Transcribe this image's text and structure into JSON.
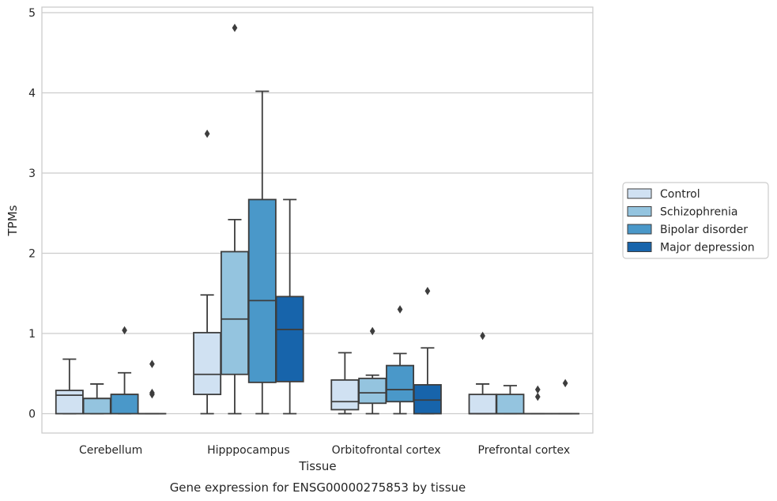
{
  "chart_data": {
    "type": "boxplot",
    "xlabel": "Tissue",
    "ylabel": "TPMs",
    "caption": "Gene expression for ENSG00000275853 by tissue",
    "ylim": [
      -0.23,
      5.08
    ],
    "yticks": [
      0,
      1,
      2,
      3,
      4,
      5
    ],
    "grid": "horizontal",
    "legend_position": "right",
    "categories": [
      "Cerebellum",
      "Hipppocampus",
      "Orbitofrontal cortex",
      "Prefrontal cortex"
    ],
    "series": [
      {
        "name": "Control",
        "color": "#d0e1f2",
        "boxes": [
          {
            "whislo": 0,
            "q1": 0,
            "med": 0.23,
            "q3": 0.29,
            "whishi": 0.68,
            "fliers": []
          },
          {
            "whislo": 0,
            "q1": 0.24,
            "med": 0.49,
            "q3": 1.01,
            "whishi": 1.48,
            "fliers": [
              3.49
            ]
          },
          {
            "whislo": 0,
            "q1": 0.05,
            "med": 0.15,
            "q3": 0.42,
            "whishi": 0.76,
            "fliers": []
          },
          {
            "whislo": 0,
            "q1": 0,
            "med": 0,
            "q3": 0.24,
            "whishi": 0.37,
            "fliers": [
              0.97
            ]
          }
        ]
      },
      {
        "name": "Schizophrenia",
        "color": "#94c4df",
        "boxes": [
          {
            "whislo": 0,
            "q1": 0,
            "med": 0.19,
            "q3": 0.19,
            "whishi": 0.37,
            "fliers": []
          },
          {
            "whislo": 0,
            "q1": 0.49,
            "med": 1.18,
            "q3": 2.02,
            "whishi": 2.42,
            "fliers": [
              4.81
            ]
          },
          {
            "whislo": 0,
            "q1": 0.13,
            "med": 0.26,
            "q3": 0.44,
            "whishi": 0.48,
            "fliers": [
              1.03
            ]
          },
          {
            "whislo": 0,
            "q1": 0,
            "med": 0,
            "q3": 0.24,
            "whishi": 0.35,
            "fliers": []
          }
        ]
      },
      {
        "name": "Bipolar disorder",
        "color": "#4a98c9",
        "boxes": [
          {
            "whislo": 0,
            "q1": 0,
            "med": 0.24,
            "q3": 0.24,
            "whishi": 0.51,
            "fliers": [
              1.04
            ]
          },
          {
            "whislo": 0,
            "q1": 0.39,
            "med": 1.41,
            "q3": 2.67,
            "whishi": 4.02,
            "fliers": []
          },
          {
            "whislo": 0,
            "q1": 0.15,
            "med": 0.3,
            "q3": 0.6,
            "whishi": 0.75,
            "fliers": [
              1.3
            ]
          },
          {
            "whislo": 0,
            "q1": 0,
            "med": 0,
            "q3": 0,
            "whishi": 0,
            "fliers": [
              0.21,
              0.3
            ]
          }
        ]
      },
      {
        "name": "Major depression",
        "color": "#1764ab",
        "boxes": [
          {
            "whislo": 0,
            "q1": 0,
            "med": 0,
            "q3": 0,
            "whishi": 0,
            "fliers": [
              0.24,
              0.26,
              0.62
            ]
          },
          {
            "whislo": 0,
            "q1": 0.4,
            "med": 1.05,
            "q3": 1.46,
            "whishi": 2.67,
            "fliers": []
          },
          {
            "whislo": 0,
            "q1": 0,
            "med": 0.17,
            "q3": 0.36,
            "whishi": 0.82,
            "fliers": [
              1.53
            ]
          },
          {
            "whislo": 0,
            "q1": 0,
            "med": 0,
            "q3": 0,
            "whishi": 0,
            "fliers": [
              0.38
            ]
          }
        ]
      }
    ]
  }
}
